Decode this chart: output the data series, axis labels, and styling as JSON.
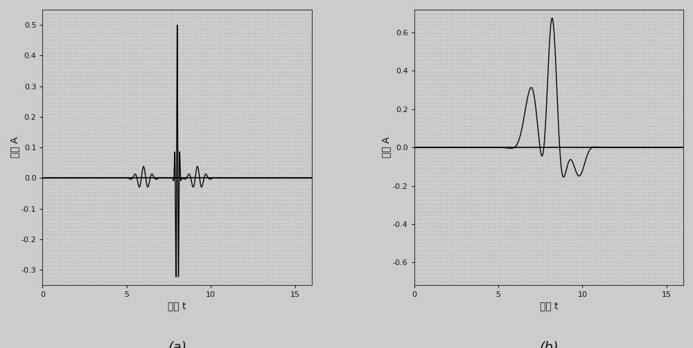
{
  "xlim": [
    0,
    16
  ],
  "ylim_a": [
    -0.35,
    0.55
  ],
  "ylim_b": [
    -0.72,
    0.72
  ],
  "xticks": [
    0,
    5,
    10,
    15
  ],
  "yticks_a": [
    -0.3,
    -0.2,
    -0.1,
    0.0,
    0.1,
    0.2,
    0.3,
    0.4,
    0.5
  ],
  "yticks_b": [
    -0.6,
    -0.4,
    -0.2,
    0.0,
    0.2,
    0.4,
    0.6
  ],
  "xlabel": "时间 t",
  "ylabel": "幅値 A",
  "label_a": "(a)",
  "label_b": "(b)",
  "line_color": "#000000",
  "bg_color": "#cccccc",
  "plot_bg": "#cccccc",
  "line_width": 1.0,
  "font_size_tick": 8,
  "font_size_label": 10,
  "font_size_caption": 14
}
